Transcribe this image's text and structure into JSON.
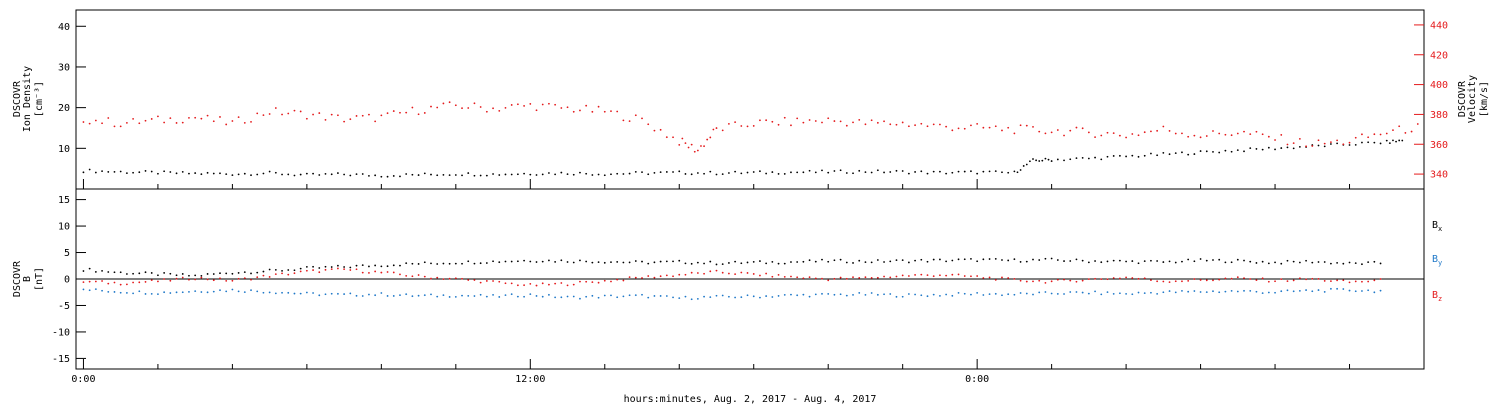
{
  "figure": {
    "xlabel": "hours:minutes, Aug.  2, 2017 - Aug.  4, 2017",
    "x_ticks": [
      "0:00",
      "12:00",
      "0:00"
    ]
  },
  "chart_data": [
    {
      "type": "scatter",
      "panel": "plasma",
      "left_axis": {
        "label_lines": [
          "DSCOVR",
          "Ion Density",
          "[cm⁻³]"
        ],
        "ylim": [
          0,
          44
        ],
        "ticks": [
          10,
          20,
          30,
          40
        ]
      },
      "right_axis": {
        "label_lines": [
          "DSCOVR",
          "Velocity",
          "[km/s]"
        ],
        "ylim": [
          330,
          450
        ],
        "ticks": [
          340,
          360,
          380,
          400,
          420,
          440
        ]
      },
      "x_unit": "hours since Aug 2 0:00",
      "xlim": [
        -0.2,
        36
      ],
      "series": [
        {
          "color": "#000000",
          "axis": "left",
          "points": [
            [
              0,
              4.5
            ],
            [
              1,
              4.2
            ],
            [
              2,
              4.0
            ],
            [
              3,
              3.8
            ],
            [
              4,
              3.7
            ],
            [
              5,
              3.9
            ],
            [
              6,
              3.4
            ],
            [
              7,
              3.6
            ],
            [
              8,
              3.3
            ],
            [
              9,
              3.5
            ],
            [
              10,
              3.7
            ],
            [
              11,
              3.6
            ],
            [
              12,
              3.8
            ],
            [
              13,
              3.9
            ],
            [
              14,
              3.7
            ],
            [
              15,
              3.9
            ],
            [
              16,
              4.0
            ],
            [
              17,
              3.9
            ],
            [
              18,
              4.0
            ],
            [
              19,
              4.1
            ],
            [
              20,
              4.2
            ],
            [
              21,
              4.3
            ],
            [
              22,
              4.2
            ],
            [
              23,
              4.0
            ],
            [
              24,
              4.1
            ],
            [
              25,
              4.0
            ],
            [
              25.5,
              7.0
            ],
            [
              26,
              7.2
            ],
            [
              27,
              7.5
            ],
            [
              28,
              8.0
            ],
            [
              29,
              8.5
            ],
            [
              30,
              9.0
            ],
            [
              31,
              9.5
            ],
            [
              32,
              10.0
            ],
            [
              33,
              10.5
            ],
            [
              34,
              11.0
            ],
            [
              35,
              11.5
            ],
            [
              35.5,
              12.0
            ]
          ]
        },
        {
          "color": "#e41a1c",
          "axis": "right",
          "points": [
            [
              0,
              377
            ],
            [
              1,
              374
            ],
            [
              2,
              376
            ],
            [
              3,
              378
            ],
            [
              4,
              374
            ],
            [
              5,
              382
            ],
            [
              6,
              380
            ],
            [
              7,
              377
            ],
            [
              8,
              378
            ],
            [
              9,
              383
            ],
            [
              10,
              386
            ],
            [
              11,
              384
            ],
            [
              12,
              386
            ],
            [
              13,
              384
            ],
            [
              14,
              382
            ],
            [
              15,
              376
            ],
            [
              16,
              362
            ],
            [
              16.5,
              356
            ],
            [
              17,
              370
            ],
            [
              18,
              374
            ],
            [
              19,
              375
            ],
            [
              20,
              376
            ],
            [
              21,
              374
            ],
            [
              22,
              374
            ],
            [
              23,
              372
            ],
            [
              24,
              371
            ],
            [
              25,
              370
            ],
            [
              26,
              369
            ],
            [
              27,
              368
            ],
            [
              28,
              366
            ],
            [
              29,
              370
            ],
            [
              30,
              366
            ],
            [
              31,
              368
            ],
            [
              32,
              364
            ],
            [
              33,
              360
            ],
            [
              34,
              362
            ],
            [
              35,
              368
            ],
            [
              36,
              372
            ]
          ]
        }
      ]
    },
    {
      "type": "scatter",
      "panel": "magnetic_field",
      "left_axis": {
        "label_lines": [
          "DSCOVR",
          "B",
          "[nT]"
        ],
        "ylim": [
          -17,
          17
        ],
        "ticks": [
          -15,
          -10,
          -5,
          0,
          5,
          10,
          15
        ]
      },
      "legend": [
        {
          "text": "B",
          "sub": "x",
          "color": "#000000"
        },
        {
          "text": "B",
          "sub": "y",
          "color": "#1f78c8"
        },
        {
          "text": "B",
          "sub": "z",
          "color": "#e41a1c"
        }
      ],
      "x_unit": "hours since Aug 2 0:00",
      "xlim": [
        -0.2,
        36
      ],
      "series": [
        {
          "name": "Bx",
          "color": "#000000",
          "points": [
            [
              0,
              1.8
            ],
            [
              1,
              1.2
            ],
            [
              2,
              0.9
            ],
            [
              3,
              0.6
            ],
            [
              4,
              1.2
            ],
            [
              5,
              1.5
            ],
            [
              6,
              2.0
            ],
            [
              7,
              2.3
            ],
            [
              8,
              2.6
            ],
            [
              9,
              2.9
            ],
            [
              10,
              3.1
            ],
            [
              11,
              3.3
            ],
            [
              12,
              3.5
            ],
            [
              13,
              3.4
            ],
            [
              14,
              3.3
            ],
            [
              15,
              3.1
            ],
            [
              16,
              3.2
            ],
            [
              17,
              3.0
            ],
            [
              18,
              3.1
            ],
            [
              19,
              3.2
            ],
            [
              20,
              3.4
            ],
            [
              21,
              3.3
            ],
            [
              22,
              3.4
            ],
            [
              23,
              3.5
            ],
            [
              24,
              3.6
            ],
            [
              25,
              3.5
            ],
            [
              26,
              3.6
            ],
            [
              27,
              3.4
            ],
            [
              28,
              3.3
            ],
            [
              29,
              3.2
            ],
            [
              30,
              3.5
            ],
            [
              31,
              3.4
            ],
            [
              32,
              3.1
            ],
            [
              33,
              3.3
            ],
            [
              34,
              2.9
            ],
            [
              35,
              3.0
            ]
          ]
        },
        {
          "name": "By",
          "color": "#1f78c8",
          "points": [
            [
              0,
              -2.0
            ],
            [
              1,
              -2.4
            ],
            [
              2,
              -2.6
            ],
            [
              3,
              -2.3
            ],
            [
              4,
              -2.1
            ],
            [
              5,
              -2.4
            ],
            [
              6,
              -2.8
            ],
            [
              7,
              -3.0
            ],
            [
              8,
              -2.9
            ],
            [
              9,
              -3.2
            ],
            [
              10,
              -3.1
            ],
            [
              11,
              -3.3
            ],
            [
              12,
              -3.0
            ],
            [
              13,
              -3.5
            ],
            [
              14,
              -3.3
            ],
            [
              15,
              -3.2
            ],
            [
              16,
              -3.6
            ],
            [
              17,
              -3.4
            ],
            [
              18,
              -3.3
            ],
            [
              19,
              -3.1
            ],
            [
              20,
              -3.0
            ],
            [
              21,
              -2.9
            ],
            [
              22,
              -3.1
            ],
            [
              23,
              -3.0
            ],
            [
              24,
              -2.8
            ],
            [
              25,
              -2.9
            ],
            [
              26,
              -2.7
            ],
            [
              27,
              -2.6
            ],
            [
              28,
              -2.8
            ],
            [
              29,
              -2.5
            ],
            [
              30,
              -2.4
            ],
            [
              31,
              -2.3
            ],
            [
              32,
              -2.5
            ],
            [
              33,
              -2.2
            ],
            [
              34,
              -2.1
            ],
            [
              35,
              -2.3
            ]
          ]
        },
        {
          "name": "Bz",
          "color": "#e41a1c",
          "points": [
            [
              0,
              -0.5
            ],
            [
              1,
              -0.8
            ],
            [
              2,
              -0.4
            ],
            [
              3,
              0.2
            ],
            [
              4,
              -0.3
            ],
            [
              5,
              0.6
            ],
            [
              6,
              1.4
            ],
            [
              7,
              1.8
            ],
            [
              8,
              1.2
            ],
            [
              9,
              0.5
            ],
            [
              10,
              0.0
            ],
            [
              11,
              -0.6
            ],
            [
              12,
              -1.2
            ],
            [
              13,
              -0.9
            ],
            [
              14,
              -0.4
            ],
            [
              15,
              0.3
            ],
            [
              16,
              0.8
            ],
            [
              17,
              1.3
            ],
            [
              18,
              0.9
            ],
            [
              19,
              0.4
            ],
            [
              20,
              0.0
            ],
            [
              21,
              0.2
            ],
            [
              22,
              0.6
            ],
            [
              23,
              0.8
            ],
            [
              24,
              0.4
            ],
            [
              25,
              -0.2
            ],
            [
              26,
              -0.5
            ],
            [
              27,
              -0.1
            ],
            [
              28,
              0.3
            ],
            [
              29,
              -0.4
            ],
            [
              30,
              -0.2
            ],
            [
              31,
              0.1
            ],
            [
              32,
              -0.3
            ],
            [
              33,
              0.0
            ],
            [
              34,
              -0.6
            ],
            [
              35,
              -0.2
            ]
          ]
        }
      ]
    }
  ]
}
